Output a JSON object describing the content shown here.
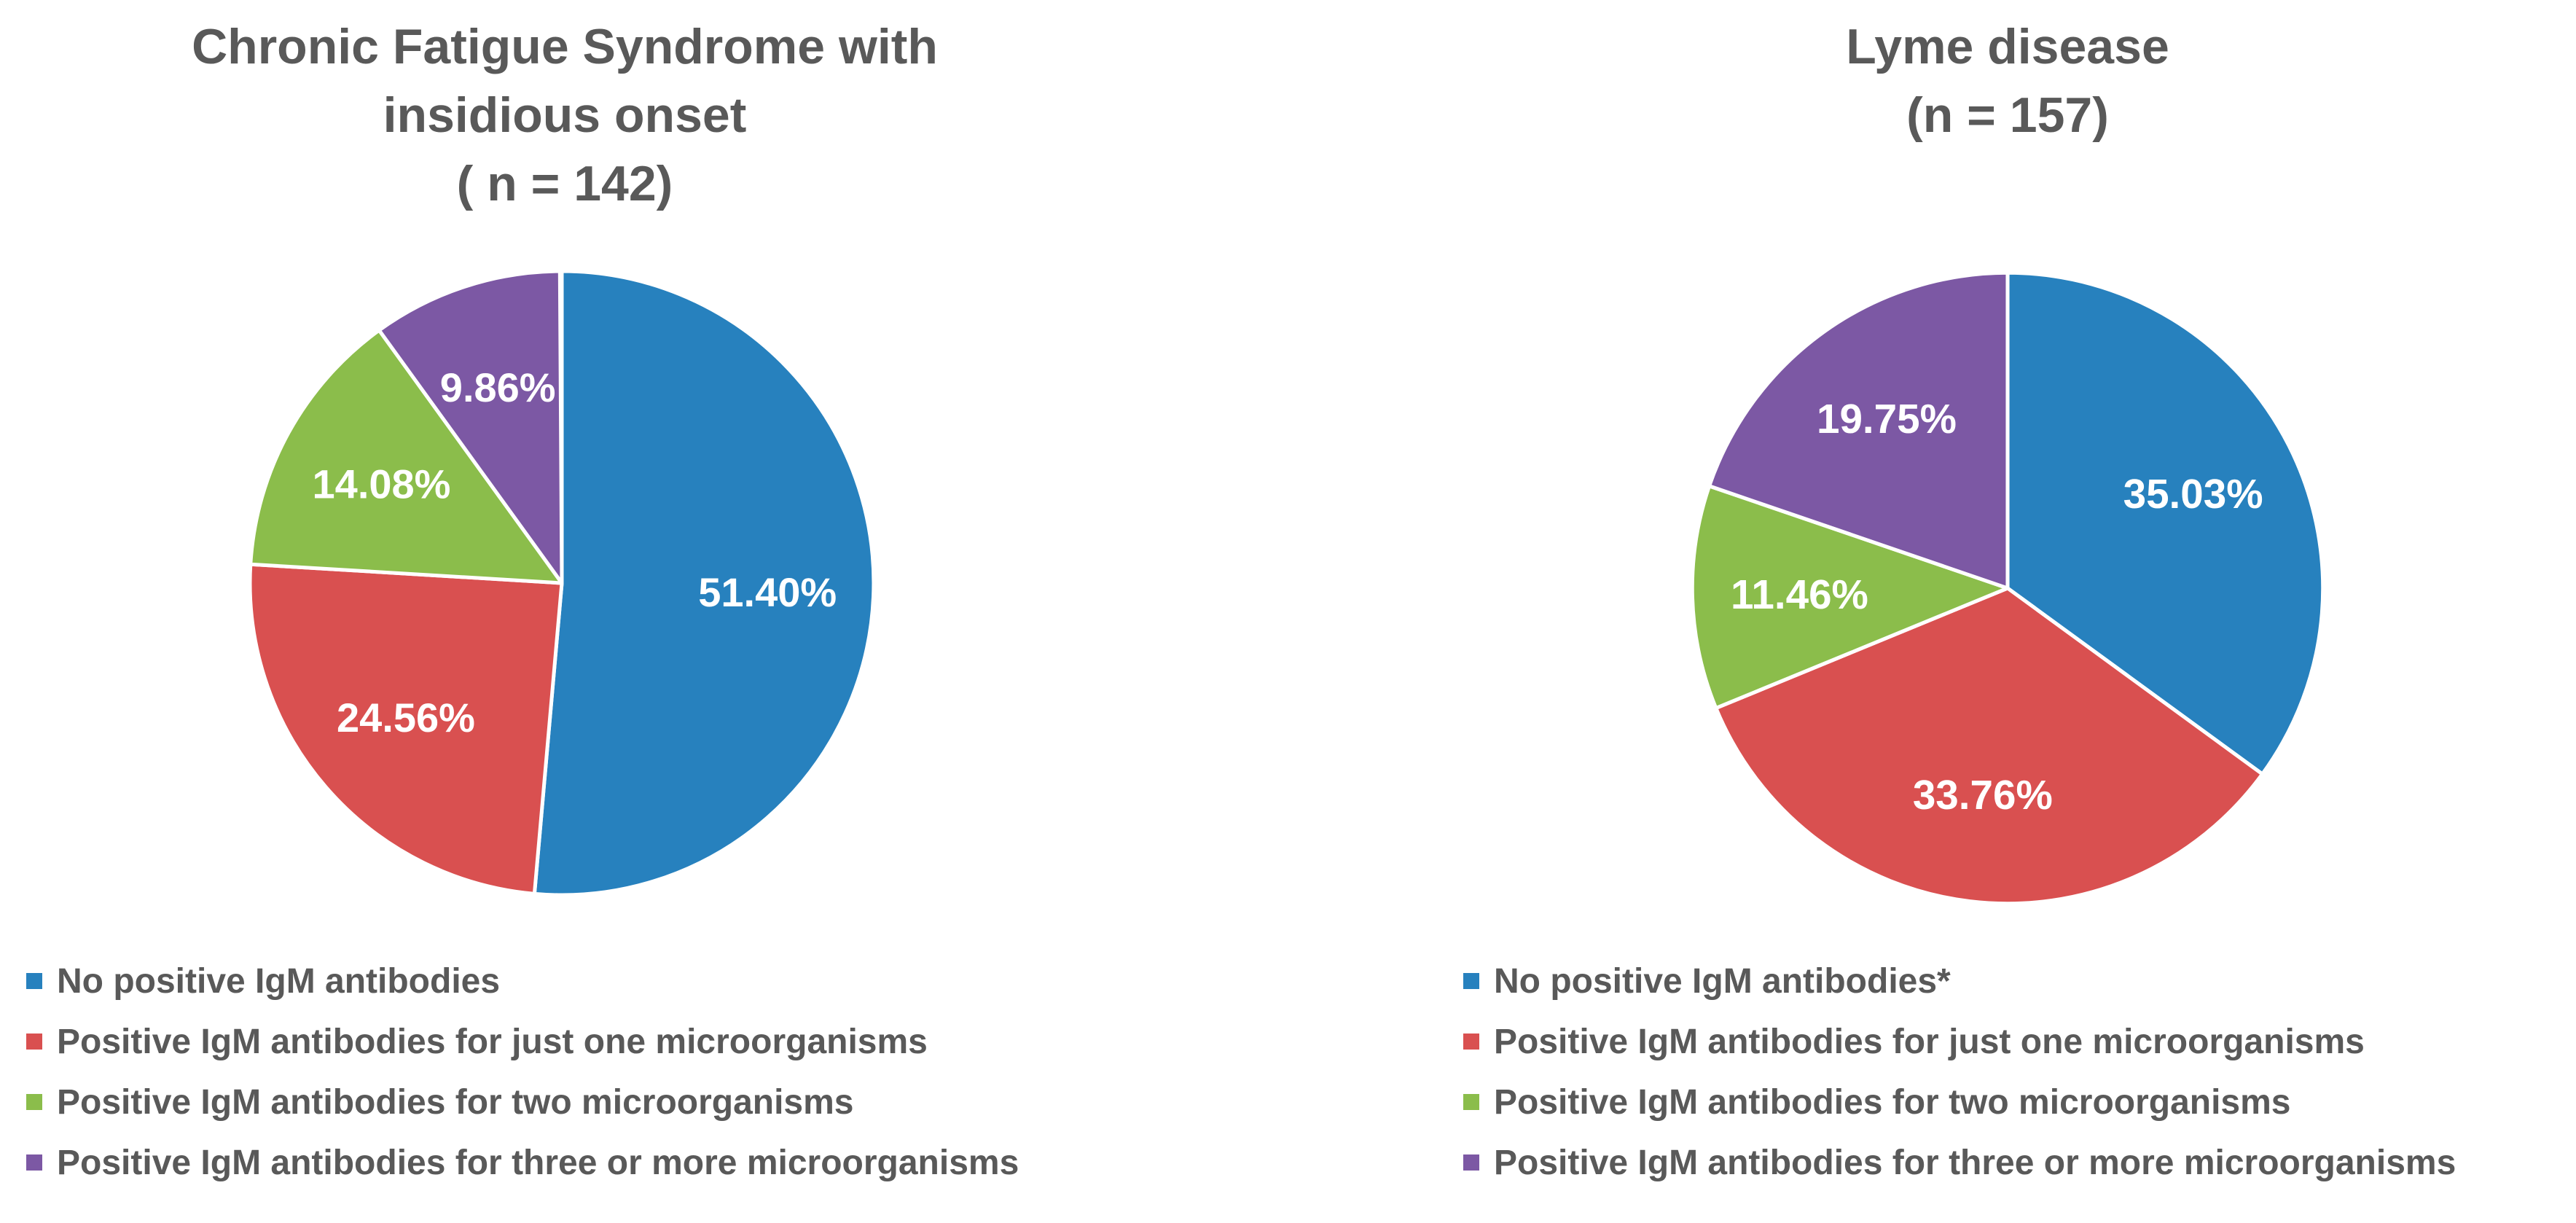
{
  "page": {
    "background_color": "#ffffff",
    "text_color": "#595959",
    "label_text_color": "#ffffff"
  },
  "chart_data": [
    {
      "type": "pie",
      "title": "Chronic Fatigue Syndrome with insidious onset ( n = 142)",
      "title_lines": [
        "Chronic Fatigue Syndrome with",
        "insidious onset",
        "( n = 142)"
      ],
      "n": 142,
      "start_angle_deg": 0,
      "direction": "clockwise",
      "legend_position": "bottom-left",
      "slices": [
        {
          "label": "No positive IgM antibodies",
          "value": 51.4,
          "display": "51.40%",
          "color": "#2781BE"
        },
        {
          "label": "Positive IgM antibodies for just one microorganisms",
          "value": 24.56,
          "display": "24.56%",
          "color": "#D95050"
        },
        {
          "label": "Positive IgM antibodies for two microorganisms",
          "value": 14.08,
          "display": "14.08%",
          "color": "#8BBD4B"
        },
        {
          "label": "Positive IgM antibodies for three or more microorganisms",
          "value": 9.86,
          "display": "9.86%",
          "color": "#7C58A4"
        }
      ]
    },
    {
      "type": "pie",
      "title": "Lyme disease (n = 157)",
      "title_lines": [
        "Lyme disease",
        "(n = 157)"
      ],
      "n": 157,
      "start_angle_deg": 0,
      "direction": "clockwise",
      "legend_position": "bottom-left",
      "slices": [
        {
          "label": "No positive IgM antibodies*",
          "value": 35.03,
          "display": "35.03%",
          "color": "#2781BE"
        },
        {
          "label": "Positive IgM antibodies for just one microorganisms",
          "value": 33.76,
          "display": "33.76%",
          "color": "#D95050"
        },
        {
          "label": "Positive IgM antibodies for two microorganisms",
          "value": 11.46,
          "display": "11.46%",
          "color": "#8BBD4B"
        },
        {
          "label": "Positive IgM antibodies for three or more microorganisms",
          "value": 19.75,
          "display": "19.75%",
          "color": "#7C58A4"
        }
      ]
    }
  ]
}
